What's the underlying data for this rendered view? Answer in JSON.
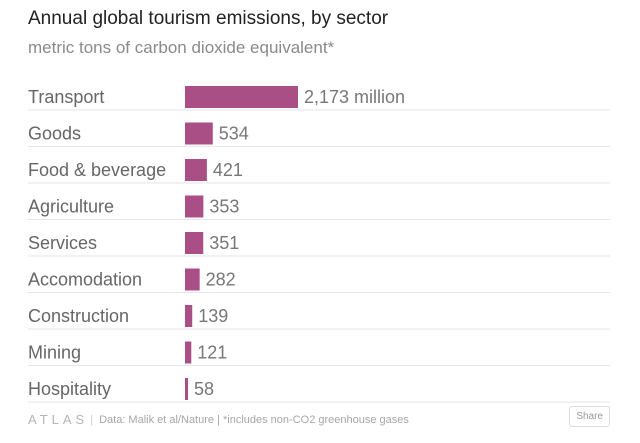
{
  "chart_data": {
    "type": "bar",
    "orientation": "horizontal",
    "title": "Annual global tourism emissions, by sector",
    "subtitle": "metric tons of carbon dioxide equivalent*",
    "categories": [
      "Transport",
      "Goods",
      "Food & beverage",
      "Agriculture",
      "Services",
      "Accomodation",
      "Construction",
      "Mining",
      "Hospitality"
    ],
    "values": [
      2173,
      534,
      421,
      353,
      351,
      282,
      139,
      121,
      58
    ],
    "data_labels": [
      "2,173 million",
      "534",
      "421",
      "353",
      "351",
      "282",
      "139",
      "121",
      "58"
    ],
    "xlim": [
      0,
      2173
    ],
    "bar_color": "#a94f86",
    "grid": true
  },
  "footer": {
    "logo": "ATLAS",
    "source": "Data:  Malik et al/Nature | *includes non-CO2 greenhouse gases",
    "share_label": "Share"
  }
}
